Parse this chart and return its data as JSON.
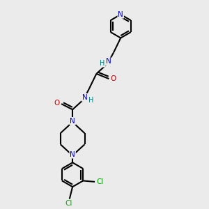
{
  "bg_color": "#ebebeb",
  "atom_colors": {
    "C": "#000000",
    "N": "#0000cc",
    "O": "#cc0000",
    "Cl": "#00aa00",
    "H": "#008080"
  },
  "bond_color": "#000000",
  "bond_width": 1.5,
  "fig_size": [
    3.0,
    3.0
  ],
  "dpi": 100
}
